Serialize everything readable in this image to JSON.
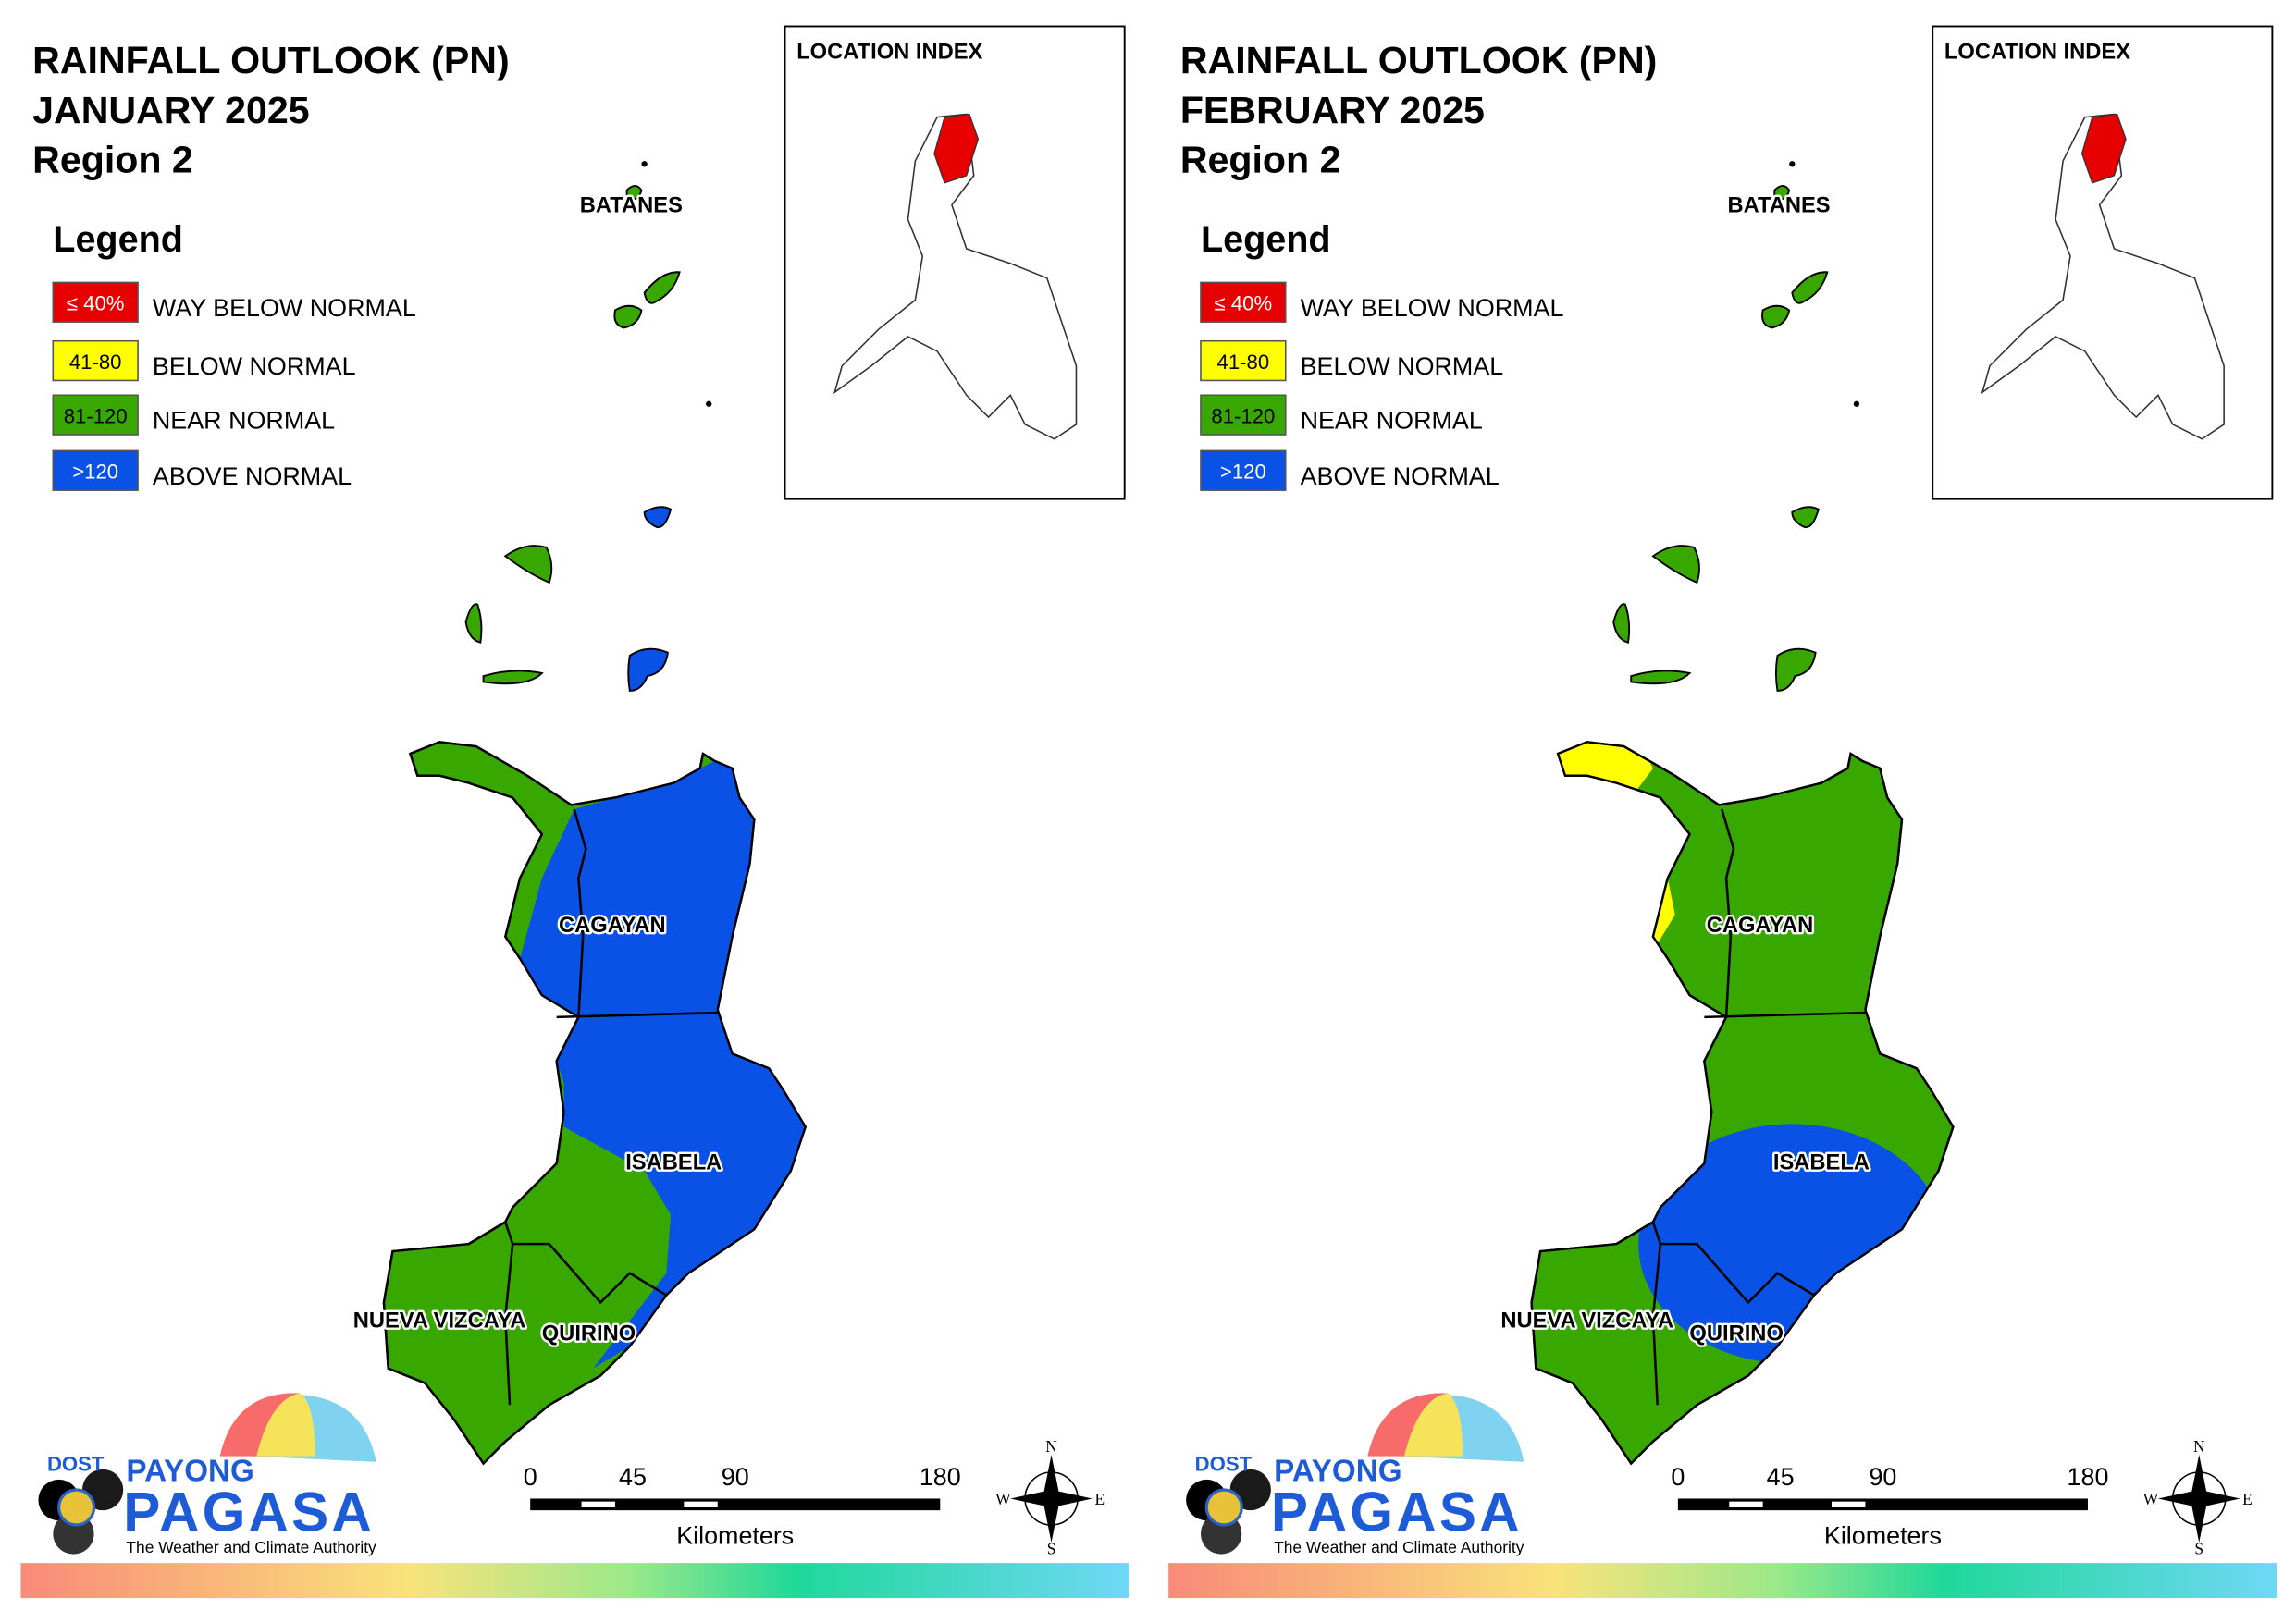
{
  "panels": [
    {
      "title": [
        "RAINFALL OUTLOOK (PN)",
        "JANUARY 2025",
        "Region 2"
      ],
      "legend": {
        "title": "Legend",
        "items": [
          {
            "range": "≤ 40%",
            "label": "WAY BELOW NORMAL",
            "color": "#e60000"
          },
          {
            "range": "41-80",
            "label": "BELOW NORMAL",
            "color": "#ffff00"
          },
          {
            "range": "81-120",
            "label": "NEAR NORMAL",
            "color": "#38a800"
          },
          {
            "range": ">120",
            "label": "ABOVE NORMAL",
            "color": "#0a52e6"
          }
        ]
      },
      "location_index": "LOCATION INDEX",
      "labels": [
        "BATANES",
        "CAGAYAN",
        "ISABELA",
        "NUEVA VIZCAYA",
        "QUIRINO"
      ],
      "scale": {
        "ticks": [
          0,
          45,
          90,
          180
        ],
        "unit": "Kilometers"
      },
      "compass": [
        "N",
        "E",
        "S",
        "W"
      ],
      "logo": {
        "dost": "DOST",
        "payong": "PAYONG",
        "pagasa": "PAGASA",
        "tagline": "The Weather and Climate Authority"
      }
    },
    {
      "title": [
        "RAINFALL OUTLOOK (PN)",
        "FEBRUARY 2025",
        "Region 2"
      ],
      "legend": {
        "title": "Legend",
        "items": [
          {
            "range": "≤ 40%",
            "label": "WAY BELOW NORMAL",
            "color": "#e60000"
          },
          {
            "range": "41-80",
            "label": "BELOW NORMAL",
            "color": "#ffff00"
          },
          {
            "range": "81-120",
            "label": "NEAR NORMAL",
            "color": "#38a800"
          },
          {
            "range": ">120",
            "label": "ABOVE NORMAL",
            "color": "#0a52e6"
          }
        ]
      },
      "location_index": "LOCATION INDEX",
      "labels": [
        "BATANES",
        "CAGAYAN",
        "ISABELA",
        "NUEVA VIZCAYA",
        "QUIRINO"
      ],
      "scale": {
        "ticks": [
          0,
          45,
          90,
          180
        ],
        "unit": "Kilometers"
      },
      "compass": [
        "N",
        "E",
        "S",
        "W"
      ],
      "logo": {
        "dost": "DOST",
        "payong": "PAYONG",
        "pagasa": "PAGASA",
        "tagline": "The Weather and Climate Authority"
      }
    }
  ]
}
